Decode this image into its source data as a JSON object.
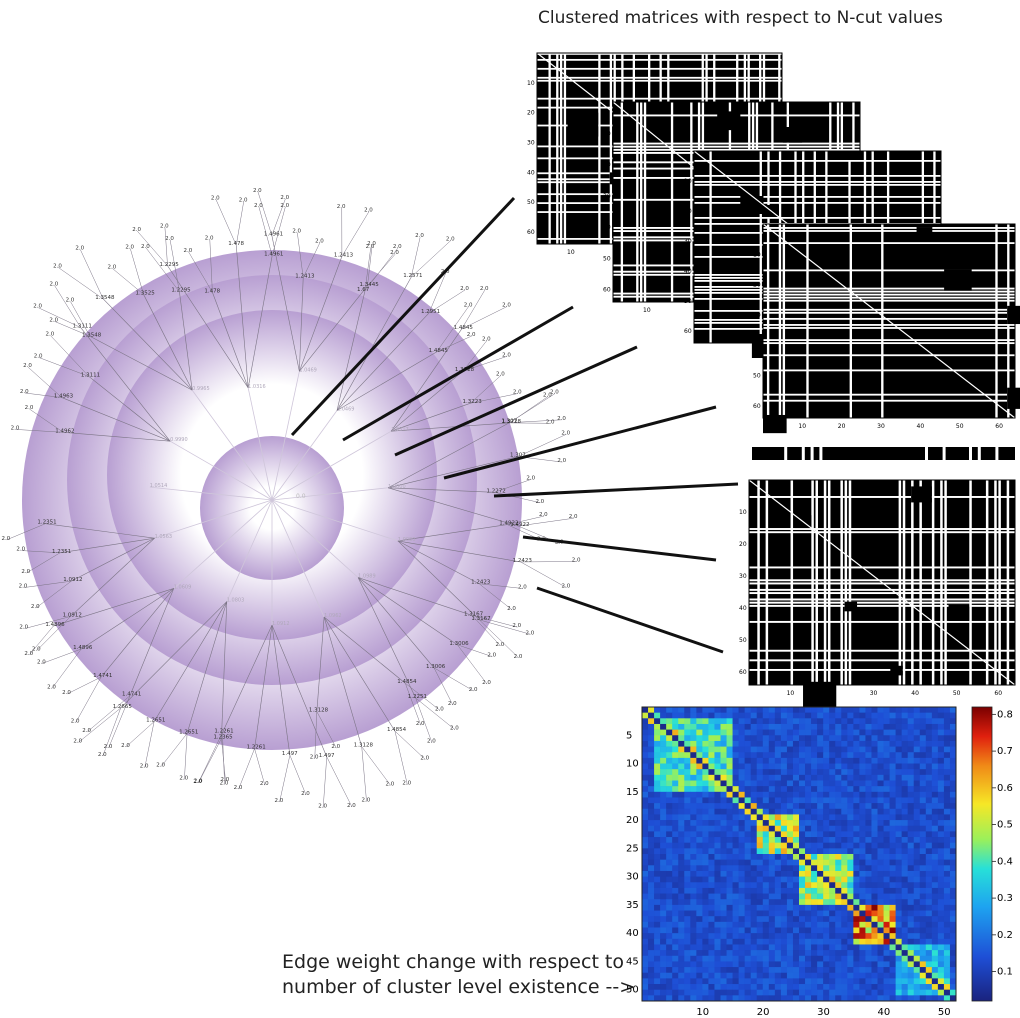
{
  "captions": {
    "top": "Clustered matrices with respect to N-cut values",
    "bottom_line1": "Edge weight change with respect to",
    "bottom_line2": "number of cluster level existence -->"
  },
  "colors": {
    "ring": "#b89fd2",
    "ring_light": "#ffffff",
    "tree": "#555555",
    "connector": "#111111",
    "matrix_fg": "#000000",
    "matrix_bg": "#ffffff",
    "heat_low": "#1d2f9a",
    "heat_high": "#7d0000"
  },
  "radial_tree": {
    "center_label": "0.0",
    "inner_labels": [
      "0.9990",
      "0.9965",
      "1.0316",
      "1.0469",
      "1.0469",
      "1.0317",
      "1.0000",
      "1.0000",
      "1.0989",
      "1.0962",
      "1.0912",
      "1.0803",
      "1.0609",
      "1.0563",
      "1.0514"
    ],
    "node_labels": [
      "1.4962",
      "1.4963",
      "1.3111",
      "1.3111",
      "1.3548",
      "1.3548",
      "1.3525",
      "1.2295",
      "1.2295",
      "1.478",
      "1.478",
      "1.4961",
      "1.4961",
      "1.2413",
      "1.2413",
      "1.3445",
      "1.67",
      "1.2571",
      "1.2951",
      "1.4845",
      "1.4845",
      "1.3728",
      "1.3223",
      "1.3728",
      "1.307",
      "1.307",
      "1.2272",
      "1.4922",
      "1.4922",
      "1.2423",
      "1.2423",
      "1.3167",
      "1.3167",
      "1.3006",
      "1.3006",
      "1.2251",
      "1.4854",
      "1.4854",
      "1.3128",
      "1.3128",
      "1.497",
      "1.497",
      "1.2261",
      "1.2261",
      "1.2365",
      "1.2651",
      "1.2651",
      "1.2665",
      "1.4741",
      "1.4741",
      "1.4896",
      "1.4896",
      "1.0912",
      "1.0912",
      "1.2351",
      "1.2351"
    ],
    "leaf_label": "2.0"
  },
  "matrices": [
    {
      "axis_ticks": [
        "10",
        "20",
        "30",
        "40",
        "50",
        "60"
      ],
      "partial_tick": "10"
    },
    {
      "axis_ticks": [
        "10",
        "20",
        "30",
        "40",
        "50",
        "60"
      ],
      "partial_tick": "10"
    },
    {
      "axis_ticks": [
        "10",
        "20",
        "30",
        "40",
        "50",
        "60"
      ],
      "partial_tick": ""
    },
    {
      "axis_ticks": [
        "10",
        "20",
        "30",
        "40",
        "50",
        "60"
      ],
      "x_ticks": [
        "10",
        "20",
        "30",
        "40",
        "50",
        "60"
      ]
    },
    {
      "axis_ticks": [
        "10",
        "20",
        "30",
        "40",
        "50",
        "60"
      ],
      "x_ticks": [
        "10",
        "20",
        "30",
        "40",
        "50",
        "60"
      ]
    }
  ],
  "heatmap": {
    "y_ticks": [
      "5",
      "10",
      "15",
      "20",
      "25",
      "30",
      "35",
      "40",
      "45",
      "50"
    ],
    "x_ticks": [
      "10",
      "20",
      "30",
      "40",
      "50"
    ],
    "colorbar_ticks": [
      "0.8",
      "0.7",
      "0.6",
      "0.5",
      "0.4",
      "0.3",
      "0.2",
      "0.1"
    ],
    "colorbar_range": [
      0.02,
      0.82
    ]
  }
}
